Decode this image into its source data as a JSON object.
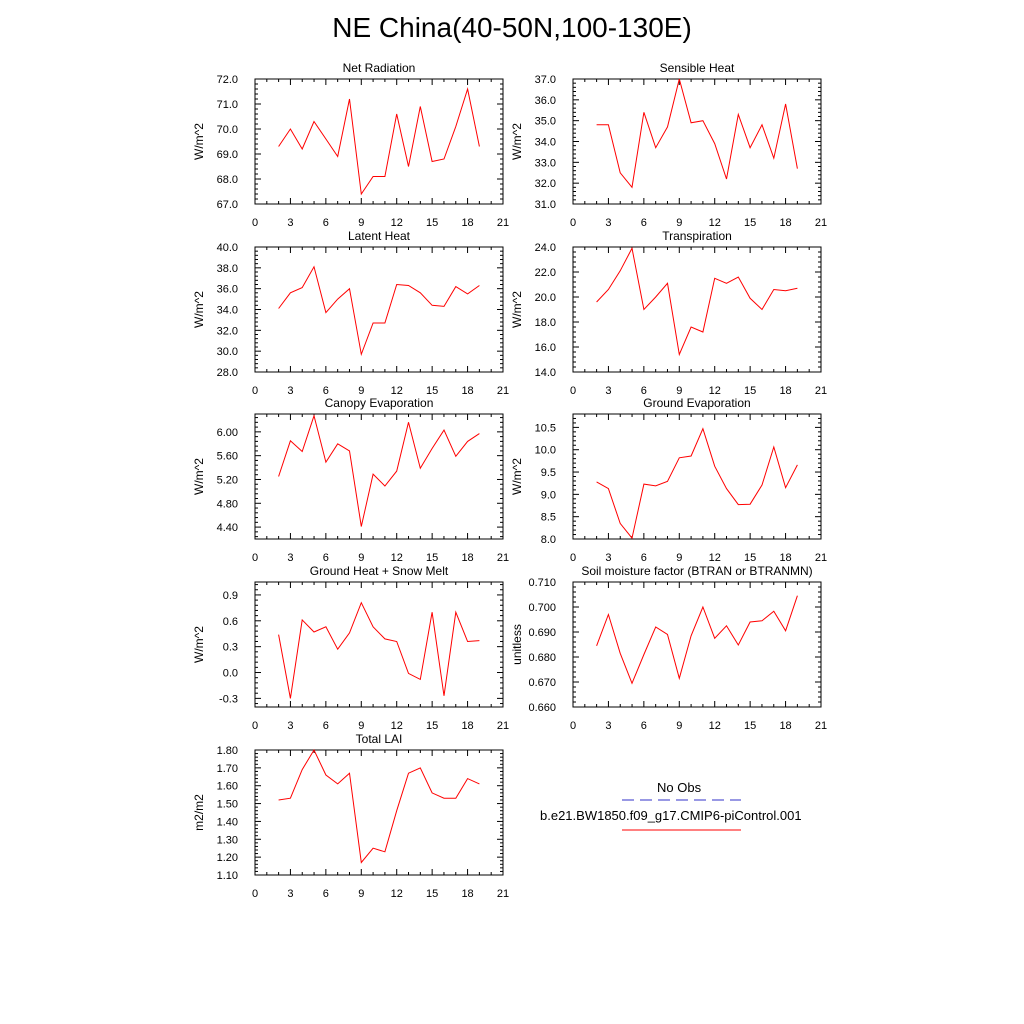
{
  "title": "NE China(40-50N,100-130E)",
  "legend": {
    "entries": [
      {
        "label": "No Obs",
        "color": "#3232c8",
        "style": "dashed"
      },
      {
        "label": "b.e21.BW1850.f09_g17.CMIP6-piControl.001",
        "color": "#ff0000",
        "style": "solid"
      }
    ]
  },
  "chart_data": [
    {
      "type": "line",
      "title": "Net Radiation",
      "ylabel": "W/m^2",
      "xlim": [
        0,
        21
      ],
      "ylim": [
        67.0,
        72.0
      ],
      "xticks": [
        "0",
        "3",
        "6",
        "9",
        "12",
        "15",
        "18",
        "21"
      ],
      "yticks": [
        "67.0",
        "68.0",
        "69.0",
        "70.0",
        "71.0",
        "72.0"
      ],
      "series": [
        {
          "color": "#ff0000",
          "x": [
            2,
            3,
            4,
            5,
            6,
            7,
            8,
            9,
            10,
            11,
            12,
            13,
            14,
            15,
            16,
            17,
            18,
            19
          ],
          "values": [
            69.3,
            70.0,
            69.2,
            70.3,
            69.6,
            68.9,
            71.2,
            67.4,
            68.1,
            68.1,
            70.6,
            68.5,
            70.9,
            68.7,
            68.8,
            70.1,
            71.6,
            69.3
          ]
        }
      ]
    },
    {
      "type": "line",
      "title": "Sensible Heat",
      "ylabel": "W/m^2",
      "xlim": [
        0,
        21
      ],
      "ylim": [
        31.0,
        37.0
      ],
      "xticks": [
        "0",
        "3",
        "6",
        "9",
        "12",
        "15",
        "18",
        "21"
      ],
      "yticks": [
        "31.0",
        "32.0",
        "33.0",
        "34.0",
        "35.0",
        "36.0",
        "37.0"
      ],
      "series": [
        {
          "color": "#ff0000",
          "x": [
            2,
            3,
            4,
            5,
            6,
            7,
            8,
            9,
            10,
            11,
            12,
            13,
            14,
            15,
            16,
            17,
            18,
            19
          ],
          "values": [
            34.8,
            34.8,
            32.5,
            31.8,
            35.4,
            33.7,
            34.7,
            37.0,
            34.9,
            35.0,
            33.9,
            32.2,
            35.3,
            33.7,
            34.8,
            33.2,
            35.8,
            32.7
          ]
        }
      ]
    },
    {
      "type": "line",
      "title": "Latent Heat",
      "ylabel": "W/m^2",
      "xlim": [
        0,
        21
      ],
      "ylim": [
        28.0,
        40.0
      ],
      "xticks": [
        "0",
        "3",
        "6",
        "9",
        "12",
        "15",
        "18",
        "21"
      ],
      "yticks": [
        "28.0",
        "30.0",
        "32.0",
        "34.0",
        "36.0",
        "38.0",
        "40.0"
      ],
      "series": [
        {
          "color": "#ff0000",
          "x": [
            2,
            3,
            4,
            5,
            6,
            7,
            8,
            9,
            10,
            11,
            12,
            13,
            14,
            15,
            16,
            17,
            18,
            19
          ],
          "values": [
            34.1,
            35.6,
            36.1,
            38.1,
            33.7,
            35.0,
            36.0,
            29.7,
            32.7,
            32.7,
            36.4,
            36.3,
            35.6,
            34.4,
            34.3,
            36.2,
            35.5,
            36.3
          ]
        }
      ]
    },
    {
      "type": "line",
      "title": "Transpiration",
      "ylabel": "W/m^2",
      "xlim": [
        0,
        21
      ],
      "ylim": [
        14.0,
        24.0
      ],
      "xticks": [
        "0",
        "3",
        "6",
        "9",
        "12",
        "15",
        "18",
        "21"
      ],
      "yticks": [
        "14.0",
        "16.0",
        "18.0",
        "20.0",
        "22.0",
        "24.0"
      ],
      "series": [
        {
          "color": "#ff0000",
          "x": [
            2,
            3,
            4,
            5,
            6,
            7,
            8,
            9,
            10,
            11,
            12,
            13,
            14,
            15,
            16,
            17,
            18,
            19
          ],
          "values": [
            19.6,
            20.6,
            22.1,
            23.9,
            19.0,
            20.0,
            21.1,
            15.4,
            17.6,
            17.2,
            21.5,
            21.1,
            21.6,
            19.9,
            19.0,
            20.6,
            20.5,
            20.7
          ]
        }
      ]
    },
    {
      "type": "line",
      "title": "Canopy Evaporation",
      "ylabel": "W/m^2",
      "xlim": [
        0,
        21
      ],
      "ylim": [
        4.2,
        6.3
      ],
      "xticks": [
        "0",
        "3",
        "6",
        "9",
        "12",
        "15",
        "18",
        "21"
      ],
      "yticks": [
        "4.40",
        "4.80",
        "5.20",
        "5.60",
        "6.00"
      ],
      "series": [
        {
          "color": "#ff0000",
          "x": [
            2,
            3,
            4,
            5,
            6,
            7,
            8,
            9,
            10,
            11,
            12,
            13,
            14,
            15,
            16,
            17,
            18,
            19
          ],
          "values": [
            5.25,
            5.85,
            5.67,
            6.27,
            5.49,
            5.8,
            5.68,
            4.41,
            5.29,
            5.09,
            5.34,
            6.16,
            5.39,
            5.72,
            6.03,
            5.59,
            5.84,
            5.97
          ]
        }
      ]
    },
    {
      "type": "line",
      "title": "Ground Evaporation",
      "ylabel": "W/m^2",
      "xlim": [
        0,
        21
      ],
      "ylim": [
        8.0,
        10.8
      ],
      "xticks": [
        "0",
        "3",
        "6",
        "9",
        "12",
        "15",
        "18",
        "21"
      ],
      "yticks": [
        "8.0",
        "8.5",
        "9.0",
        "9.5",
        "10.0",
        "10.5"
      ],
      "series": [
        {
          "color": "#ff0000",
          "x": [
            2,
            3,
            4,
            5,
            6,
            7,
            8,
            9,
            10,
            11,
            12,
            13,
            14,
            15,
            16,
            17,
            18,
            19
          ],
          "values": [
            9.28,
            9.13,
            8.35,
            8.02,
            9.23,
            9.19,
            9.29,
            9.82,
            9.86,
            10.47,
            9.63,
            9.13,
            8.77,
            8.78,
            9.21,
            10.06,
            9.15,
            9.66
          ]
        }
      ]
    },
    {
      "type": "line",
      "title": "Ground Heat + Snow Melt",
      "ylabel": "W/m^2",
      "xlim": [
        0,
        21
      ],
      "ylim": [
        -0.4,
        1.05
      ],
      "xticks": [
        "0",
        "3",
        "6",
        "9",
        "12",
        "15",
        "18",
        "21"
      ],
      "yticks": [
        "-0.3",
        "0.0",
        "0.3",
        "0.6",
        "0.9"
      ],
      "series": [
        {
          "color": "#ff0000",
          "x": [
            2,
            3,
            4,
            5,
            6,
            7,
            8,
            9,
            10,
            11,
            12,
            13,
            14,
            15,
            16,
            17,
            18,
            19
          ],
          "values": [
            0.44,
            -0.3,
            0.61,
            0.47,
            0.53,
            0.27,
            0.46,
            0.81,
            0.53,
            0.39,
            0.36,
            -0.01,
            -0.08,
            0.7,
            -0.27,
            0.7,
            0.36,
            0.37
          ]
        }
      ]
    },
    {
      "type": "line",
      "title": "Soil moisture factor (BTRAN or BTRANMN)",
      "ylabel": "unitless",
      "xlim": [
        0,
        21
      ],
      "ylim": [
        0.66,
        0.71
      ],
      "xticks": [
        "0",
        "3",
        "6",
        "9",
        "12",
        "15",
        "18",
        "21"
      ],
      "yticks": [
        "0.660",
        "0.670",
        "0.680",
        "0.690",
        "0.700",
        "0.710"
      ],
      "series": [
        {
          "color": "#ff0000",
          "x": [
            2,
            3,
            4,
            5,
            6,
            7,
            8,
            9,
            10,
            11,
            12,
            13,
            14,
            15,
            16,
            17,
            18,
            19
          ],
          "values": [
            0.6845,
            0.697,
            0.6815,
            0.6695,
            0.681,
            0.692,
            0.689,
            0.6715,
            0.6885,
            0.7,
            0.6875,
            0.6925,
            0.6848,
            0.694,
            0.6945,
            0.6983,
            0.6905,
            0.7045
          ]
        }
      ]
    },
    {
      "type": "line",
      "title": "Total LAI",
      "ylabel": "m2/m2",
      "xlim": [
        0,
        21
      ],
      "ylim": [
        1.1,
        1.8
      ],
      "xticks": [
        "0",
        "3",
        "6",
        "9",
        "12",
        "15",
        "18",
        "21"
      ],
      "yticks": [
        "1.10",
        "1.20",
        "1.30",
        "1.40",
        "1.50",
        "1.60",
        "1.70",
        "1.80"
      ],
      "series": [
        {
          "color": "#ff0000",
          "x": [
            2,
            3,
            4,
            5,
            6,
            7,
            8,
            9,
            10,
            11,
            12,
            13,
            14,
            15,
            16,
            17,
            18,
            19
          ],
          "values": [
            1.52,
            1.53,
            1.69,
            1.8,
            1.66,
            1.61,
            1.67,
            1.17,
            1.25,
            1.23,
            1.46,
            1.67,
            1.7,
            1.56,
            1.53,
            1.53,
            1.64,
            1.61
          ]
        }
      ]
    }
  ]
}
